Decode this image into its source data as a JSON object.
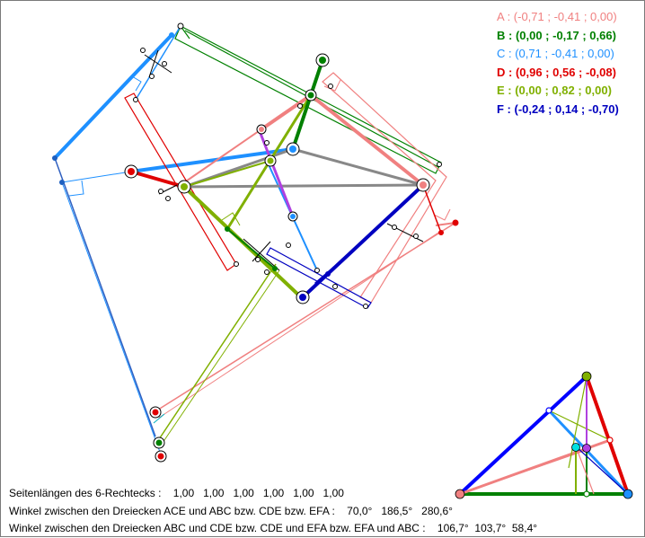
{
  "legend": [
    {
      "label": "A : (-0,71 ; -0,41 ; 0,00)",
      "color": "#f08080",
      "bold": false
    },
    {
      "label": "B : (0,00 ; -0,17 ; 0,66)",
      "color": "#008000",
      "bold": true
    },
    {
      "label": "C : (0,71 ; -0,41 ; 0,00)",
      "color": "#1e90ff",
      "bold": false
    },
    {
      "label": "D : (0,96 ; 0,56 ; -0,08)",
      "color": "#e00000",
      "bold": true
    },
    {
      "label": "E : (0,00 ; 0,82 ; 0,00)",
      "color": "#80b000",
      "bold": true
    },
    {
      "label": "F : (-0,24 ; 0,14 ; -0,70)",
      "color": "#0000c0",
      "bold": true
    }
  ],
  "footer": {
    "line1": "Seitenlängen des 6-Rechtecks :    1,00   1,00   1,00   1,00   1,00   1,00",
    "line2": "Winkel zwischen den Dreiecken ACE und ABC bzw. CDE bzw. EFA :    70,0°   186,5°   280,6°",
    "line3": "Winkel zwischen den Dreiecken ABC und CDE bzw. CDE und EFA bzw. EFA und ABC :    106,7°  103,7°  58,4°"
  },
  "colors": {
    "A": "#f08080",
    "B": "#008000",
    "C": "#1e90ff",
    "D": "#e00000",
    "E": "#80b000",
    "F": "#0000c0",
    "violet": "#b040e0",
    "gray": "#888888"
  }
}
